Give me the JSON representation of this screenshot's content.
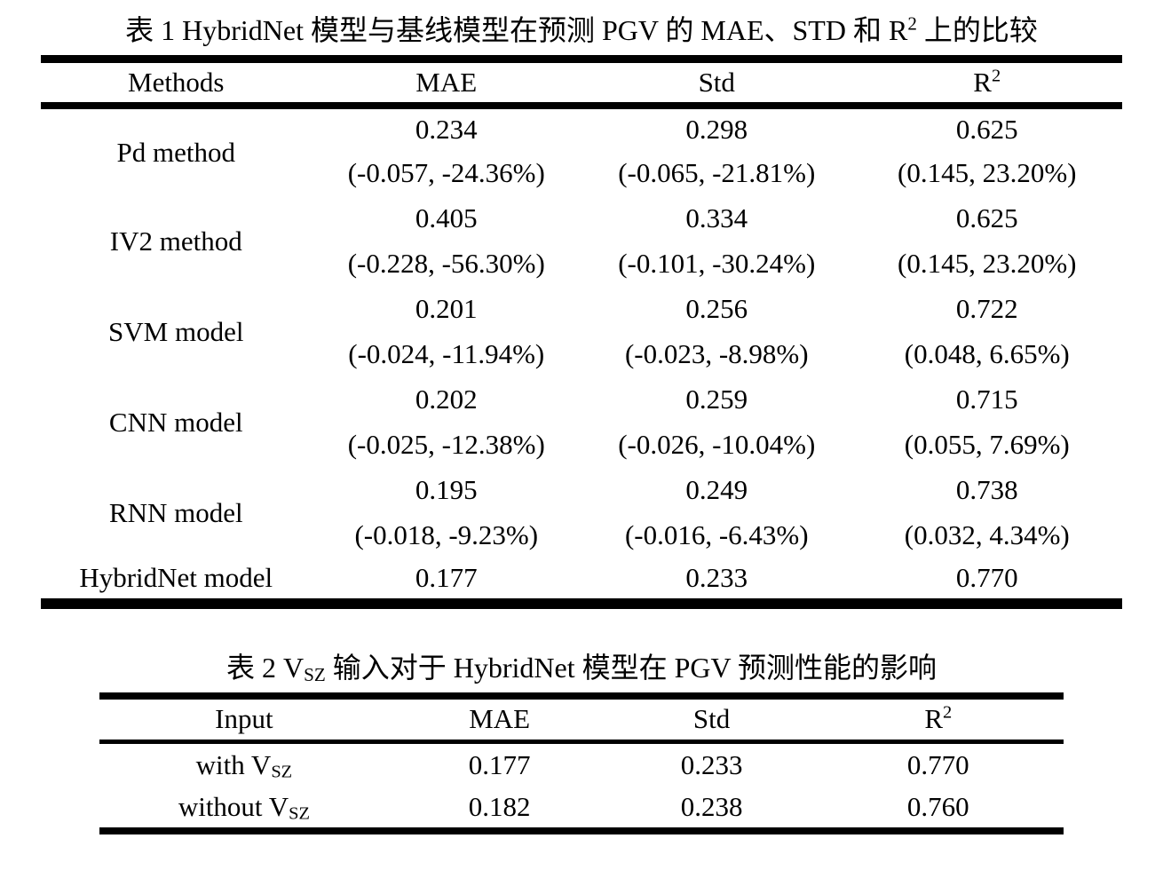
{
  "table1": {
    "caption": {
      "pre": "表 1 HybridNet 模型与基线模型在预测 PGV 的 MAE、STD 和 R",
      "sup": "2",
      "post": " 上的比较"
    },
    "headers": [
      {
        "label": "Methods",
        "sup": ""
      },
      {
        "label": "MAE",
        "sup": ""
      },
      {
        "label": "Std",
        "sup": ""
      },
      {
        "label": "R",
        "sup": "2"
      }
    ],
    "rows": [
      {
        "method": "Pd method",
        "mae": "0.234",
        "mae_delta": "(-0.057, -24.36%)",
        "std": "0.298",
        "std_delta": "(-0.065, -21.81%)",
        "r2": "0.625",
        "r2_delta": "(0.145, 23.20%)"
      },
      {
        "method": "IV2 method",
        "mae": "0.405",
        "mae_delta": "(-0.228, -56.30%)",
        "std": "0.334",
        "std_delta": "(-0.101, -30.24%)",
        "r2": "0.625",
        "r2_delta": "(0.145, 23.20%)"
      },
      {
        "method": "SVM model",
        "mae": "0.201",
        "mae_delta": "(-0.024, -11.94%)",
        "std": "0.256",
        "std_delta": "(-0.023, -8.98%)",
        "r2": "0.722",
        "r2_delta": "(0.048, 6.65%)"
      },
      {
        "method": "CNN model",
        "mae": "0.202",
        "mae_delta": "(-0.025, -12.38%)",
        "std": "0.259",
        "std_delta": "(-0.026, -10.04%)",
        "r2": "0.715",
        "r2_delta": "(0.055, 7.69%)"
      },
      {
        "method": "RNN model",
        "mae": "0.195",
        "mae_delta": "(-0.018, -9.23%)",
        "std": "0.249",
        "std_delta": "(-0.016, -6.43%)",
        "r2": "0.738",
        "r2_delta": "(0.032, 4.34%)"
      },
      {
        "method": "HybridNet model",
        "mae": "0.177",
        "std": "0.233",
        "r2": "0.770"
      }
    ]
  },
  "table2": {
    "caption": {
      "pre": "表 2 V",
      "sub": "SZ",
      "post": " 输入对于 HybridNet 模型在 PGV 预测性能的影响"
    },
    "headers": [
      {
        "label": "Input",
        "sup": ""
      },
      {
        "label": "MAE",
        "sup": ""
      },
      {
        "label": "Std",
        "sup": ""
      },
      {
        "label": "R",
        "sup": "2"
      }
    ],
    "rows": [
      {
        "input": {
          "pre": "with V",
          "sub": "SZ"
        },
        "mae": "0.177",
        "std": "0.233",
        "r2": "0.770"
      },
      {
        "input": {
          "pre": "without V",
          "sub": "SZ"
        },
        "mae": "0.182",
        "std": "0.238",
        "r2": "0.760"
      }
    ]
  }
}
